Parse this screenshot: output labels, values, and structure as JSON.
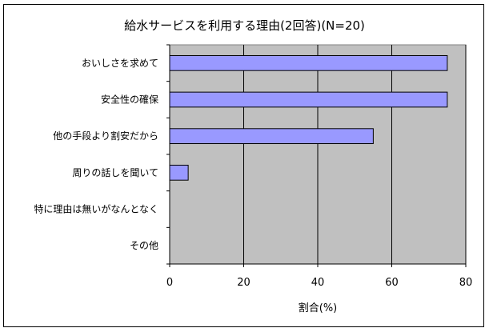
{
  "chart_data": {
    "type": "bar",
    "orientation": "horizontal",
    "title": "給水サービスを利用する理由(2回答)(N=20)",
    "categories": [
      "おいしさを求めて",
      "安全性の確保",
      "他の手段より割安だから",
      "周りの話しを聞いて",
      "特に理由は無いがなんとなく",
      "その他"
    ],
    "values": [
      75,
      75,
      55,
      5,
      0,
      0
    ],
    "xlabel": "割合(%)",
    "ylabel": "",
    "xlim": [
      0,
      80
    ],
    "xticks": [
      0,
      20,
      40,
      60,
      80
    ],
    "grid": true,
    "legend": "none",
    "colors": {
      "plot_background": "#c0c0c0",
      "bar_fill": "#9999ff",
      "bar_stroke": "#000000",
      "gridline": "#000000"
    }
  }
}
